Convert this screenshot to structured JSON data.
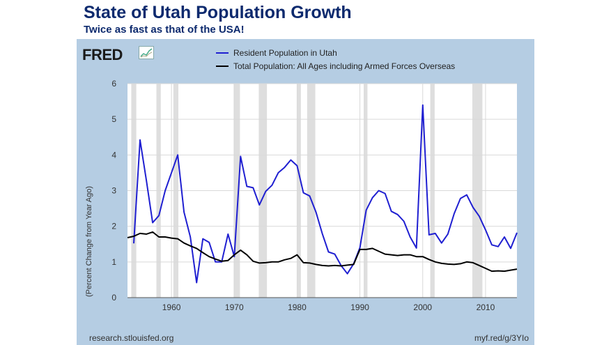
{
  "header": {
    "title": "State of Utah Population Growth",
    "subtitle": "Twice as fast as that of the USA!"
  },
  "brand": {
    "logo_text": "FRED",
    "logo_icon": "chart-line-icon"
  },
  "footer": {
    "source": "research.stlouisfed.org",
    "short_url": "myf.red/g/3YIo"
  },
  "colors": {
    "panel_bg": "#b5cde3",
    "plot_bg": "#ffffff",
    "recession": "#dedede",
    "utah": "#1f1fd1",
    "usa": "#000000",
    "title": "#0d2a6e"
  },
  "chart_data": {
    "type": "line",
    "title": "",
    "xlabel": "",
    "ylabel": "(Percent Change from Year Ago)",
    "xlim": [
      1953,
      2015
    ],
    "ylim": [
      0,
      6
    ],
    "x_ticks": [
      1960,
      1970,
      1980,
      1990,
      2000,
      2010
    ],
    "y_ticks": [
      0,
      1,
      2,
      3,
      4,
      5,
      6
    ],
    "grid": true,
    "legend": "top",
    "recessions": [
      [
        1953.6,
        1954.4
      ],
      [
        1957.6,
        1958.3
      ],
      [
        1960.3,
        1961.1
      ],
      [
        1969.9,
        1970.9
      ],
      [
        1973.9,
        1975.2
      ],
      [
        1980.0,
        1980.6
      ],
      [
        1981.6,
        1982.9
      ],
      [
        1990.6,
        1991.2
      ],
      [
        2001.2,
        2001.9
      ],
      [
        2007.9,
        2009.5
      ]
    ],
    "series": [
      {
        "name": "Resident Population in Utah",
        "color": "#1f1fd1",
        "x": [
          1954,
          1955,
          1956,
          1957,
          1958,
          1959,
          1960,
          1961,
          1962,
          1963,
          1964,
          1965,
          1966,
          1967,
          1968,
          1969,
          1970,
          1971,
          1972,
          1973,
          1974,
          1975,
          1976,
          1977,
          1978,
          1979,
          1980,
          1981,
          1982,
          1983,
          1984,
          1985,
          1986,
          1987,
          1988,
          1989,
          1990,
          1991,
          1992,
          1993,
          1994,
          1995,
          1996,
          1997,
          1998,
          1999,
          2000,
          2001,
          2002,
          2003,
          2004,
          2005,
          2006,
          2007,
          2008,
          2009,
          2010,
          2011,
          2012,
          2013,
          2014,
          2015
        ],
        "values": [
          1.52,
          4.42,
          3.3,
          2.1,
          2.3,
          3.0,
          3.5,
          4.0,
          2.4,
          1.7,
          0.42,
          1.65,
          1.55,
          1.0,
          1.0,
          1.78,
          1.15,
          3.96,
          3.12,
          3.08,
          2.6,
          2.98,
          3.15,
          3.5,
          3.65,
          3.86,
          3.7,
          2.94,
          2.85,
          2.4,
          1.8,
          1.28,
          1.22,
          0.9,
          0.67,
          0.95,
          1.4,
          2.45,
          2.8,
          3.0,
          2.92,
          2.42,
          2.33,
          2.14,
          1.7,
          1.39,
          5.4,
          1.76,
          1.8,
          1.53,
          1.78,
          2.35,
          2.78,
          2.88,
          2.53,
          2.28,
          1.9,
          1.48,
          1.43,
          1.7,
          1.38,
          1.82
        ]
      },
      {
        "name": "Total Population: All Ages including Armed Forces Overseas",
        "color": "#000000",
        "x": [
          1953,
          1954,
          1955,
          1956,
          1957,
          1958,
          1959,
          1960,
          1961,
          1962,
          1963,
          1964,
          1965,
          1966,
          1967,
          1968,
          1969,
          1970,
          1971,
          1972,
          1973,
          1974,
          1975,
          1976,
          1977,
          1978,
          1979,
          1980,
          1981,
          1982,
          1983,
          1984,
          1985,
          1986,
          1987,
          1988,
          1989,
          1990,
          1991,
          1992,
          1993,
          1994,
          1995,
          1996,
          1997,
          1998,
          1999,
          2000,
          2001,
          2002,
          2003,
          2004,
          2005,
          2006,
          2007,
          2008,
          2009,
          2010,
          2011,
          2012,
          2013,
          2014,
          2015
        ],
        "values": [
          1.68,
          1.72,
          1.8,
          1.78,
          1.84,
          1.7,
          1.7,
          1.67,
          1.65,
          1.53,
          1.45,
          1.38,
          1.26,
          1.15,
          1.08,
          1.02,
          1.04,
          1.2,
          1.33,
          1.2,
          1.02,
          0.97,
          0.98,
          1.0,
          1.0,
          1.06,
          1.1,
          1.2,
          0.98,
          0.97,
          0.93,
          0.9,
          0.89,
          0.9,
          0.89,
          0.91,
          0.93,
          1.35,
          1.35,
          1.38,
          1.3,
          1.22,
          1.2,
          1.18,
          1.2,
          1.2,
          1.15,
          1.15,
          1.07,
          1.0,
          0.96,
          0.94,
          0.93,
          0.95,
          1.0,
          0.98,
          0.9,
          0.82,
          0.74,
          0.75,
          0.74,
          0.77,
          0.8
        ]
      }
    ]
  }
}
